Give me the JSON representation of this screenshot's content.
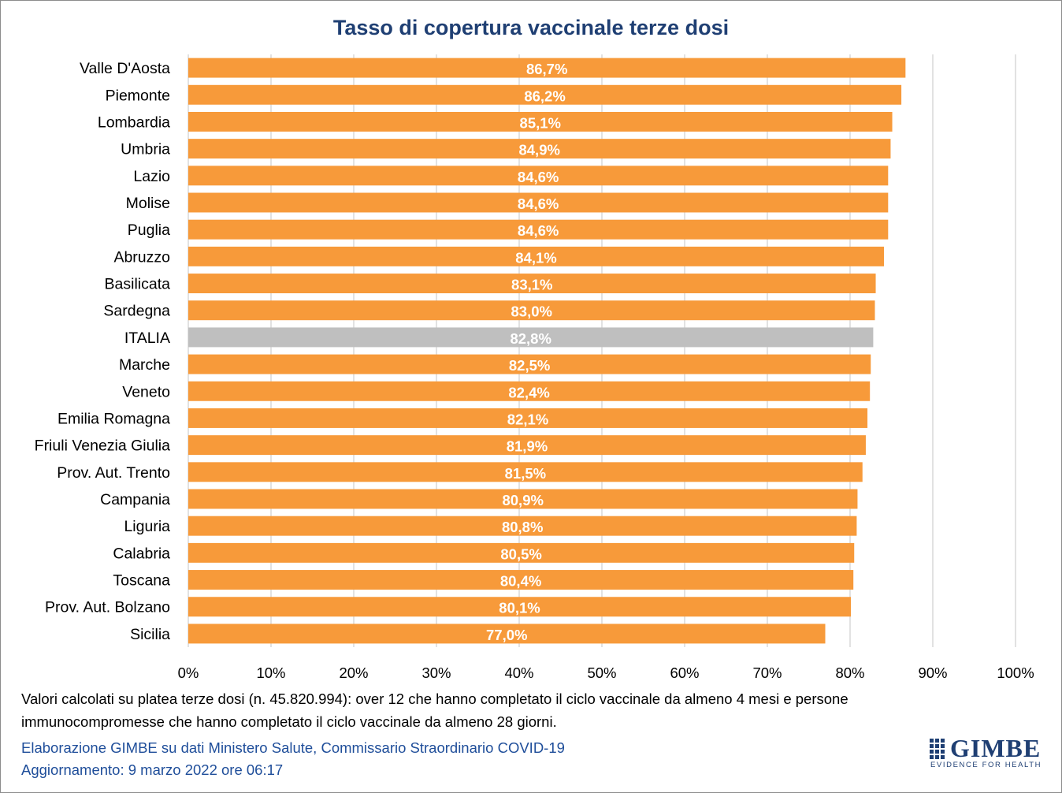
{
  "chart_data": {
    "type": "bar",
    "orientation": "horizontal",
    "title": "Tasso di copertura vaccinale terze dosi",
    "categories": [
      "Valle D'Aosta",
      "Piemonte",
      "Lombardia",
      "Umbria",
      "Lazio",
      "Molise",
      "Puglia",
      "Abruzzo",
      "Basilicata",
      "Sardegna",
      "ITALIA",
      "Marche",
      "Veneto",
      "Emilia Romagna",
      "Friuli Venezia Giulia",
      "Prov. Aut. Trento",
      "Campania",
      "Liguria",
      "Calabria",
      "Toscana",
      "Prov. Aut. Bolzano",
      "Sicilia"
    ],
    "values": [
      86.7,
      86.2,
      85.1,
      84.9,
      84.6,
      84.6,
      84.6,
      84.1,
      83.1,
      83.0,
      82.8,
      82.5,
      82.4,
      82.1,
      81.9,
      81.5,
      80.9,
      80.8,
      80.5,
      80.4,
      80.1,
      77.0
    ],
    "data_labels": [
      "86,7%",
      "86,2%",
      "85,1%",
      "84,9%",
      "84,6%",
      "84,6%",
      "84,6%",
      "84,1%",
      "83,1%",
      "83,0%",
      "82,8%",
      "82,5%",
      "82,4%",
      "82,1%",
      "81,9%",
      "81,5%",
      "80,9%",
      "80,8%",
      "80,5%",
      "80,4%",
      "80,1%",
      "77,0%"
    ],
    "highlight_category": "ITALIA",
    "xlim": [
      0,
      100
    ],
    "x_ticks": [
      "0%",
      "10%",
      "20%",
      "30%",
      "40%",
      "50%",
      "60%",
      "70%",
      "80%",
      "90%",
      "100%"
    ],
    "grid": true,
    "colors": {
      "bar": "#f79a3a",
      "highlight": "#bfbfbf",
      "grid": "#d9d9d9",
      "label": "#ffffff"
    }
  },
  "footnote": {
    "line1": "Valori calcolati su platea terze dosi (n. 45.820.994): over 12 che hanno completato il ciclo vaccinale da almeno 4 mesi e persone",
    "line2": "immunocompromesse che hanno completato il ciclo vaccinale da almeno 28 giorni."
  },
  "credits": {
    "source": "Elaborazione GIMBE su dati Ministero Salute, Commissario Straordinario COVID-19",
    "updated": "Aggiornamento: 9 marzo 2022 ore 06:17"
  },
  "logo": {
    "name": "GIMBE",
    "tagline": "EVIDENCE FOR HEALTH"
  }
}
